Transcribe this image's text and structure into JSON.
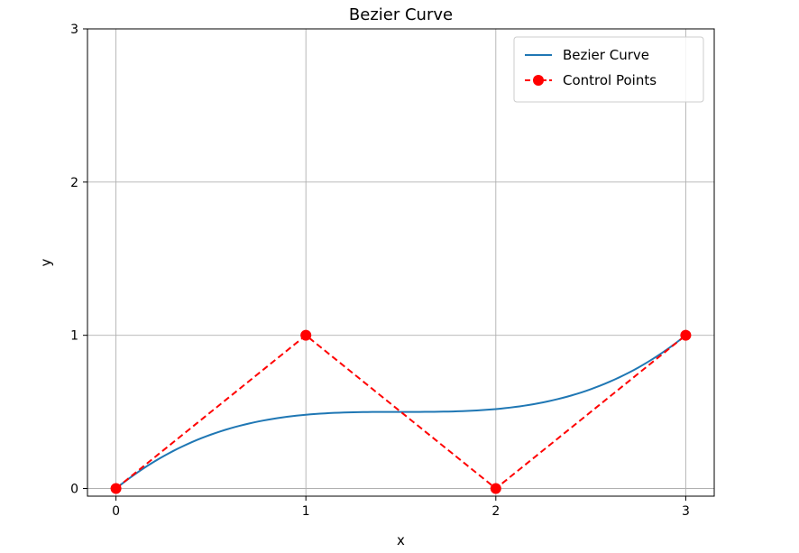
{
  "chart_data": {
    "type": "line",
    "title": "Bezier Curve",
    "xlabel": "x",
    "ylabel": "y",
    "xlim": [
      -0.15,
      3.15
    ],
    "ylim": [
      -0.05,
      3.0
    ],
    "xticks": [
      0,
      1,
      2,
      3
    ],
    "yticks": [
      0,
      1,
      2,
      3
    ],
    "grid": true,
    "legend_position": "top-right",
    "series": [
      {
        "name": "Bezier Curve",
        "color": "#1f77b4",
        "line_style": "solid",
        "marker": "none",
        "curve": "cubic-bezier",
        "control_points": [
          [
            0,
            0
          ],
          [
            1,
            1
          ],
          [
            2,
            0
          ],
          [
            3,
            1
          ]
        ]
      },
      {
        "name": "Control Points",
        "color": "#ff0000",
        "line_style": "dashed",
        "marker": "circle",
        "x": [
          0,
          1,
          2,
          3
        ],
        "y": [
          0,
          1,
          0,
          1
        ]
      }
    ]
  }
}
